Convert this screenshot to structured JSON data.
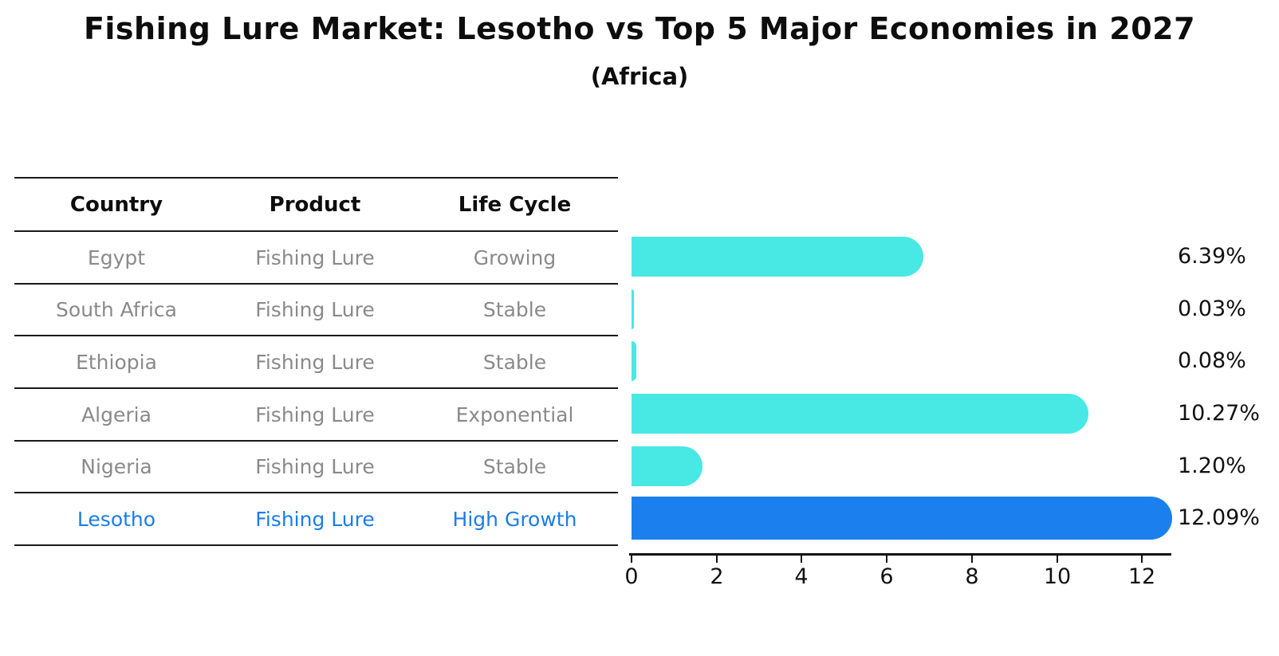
{
  "title": "Fishing Lure Market: Lesotho vs Top 5 Major Economies in 2027",
  "subtitle": "(Africa)",
  "table": {
    "headers": [
      "Country",
      "Product",
      "Life Cycle"
    ],
    "rows": [
      {
        "country": "Egypt",
        "product": "Fishing Lure",
        "life_cycle": "Growing",
        "highlighted": false
      },
      {
        "country": "South Africa",
        "product": "Fishing Lure",
        "life_cycle": "Stable",
        "highlighted": false
      },
      {
        "country": "Ethiopia",
        "product": "Fishing Lure",
        "life_cycle": "Stable",
        "highlighted": false
      },
      {
        "country": "Algeria",
        "product": "Fishing Lure",
        "life_cycle": "Exponential",
        "highlighted": false
      },
      {
        "country": "Nigeria",
        "product": "Fishing Lure",
        "life_cycle": "Stable",
        "highlighted": false
      },
      {
        "country": "Lesotho",
        "product": "Fishing Lure",
        "life_cycle": "High Growth",
        "highlighted": true
      }
    ]
  },
  "chart_data": {
    "type": "bar",
    "orientation": "horizontal",
    "title": "Fishing Lure Market: Lesotho vs Top 5 Major Economies in 2027",
    "subtitle": "(Africa)",
    "categories": [
      "Egypt",
      "South Africa",
      "Ethiopia",
      "Algeria",
      "Nigeria",
      "Lesotho"
    ],
    "values": [
      6.39,
      0.03,
      0.08,
      10.27,
      1.2,
      12.09
    ],
    "value_labels": [
      "6.39%",
      "0.03%",
      "0.08%",
      "10.27%",
      "1.20%",
      "12.09%"
    ],
    "xlabel": "",
    "ylabel": "",
    "xlim": [
      0,
      12.7
    ],
    "x_ticks": [
      0,
      2,
      4,
      6,
      8,
      10,
      12
    ],
    "grid": false,
    "legend": "none",
    "bar_color": "#48e8e4",
    "highlight_color": "#1b80ee",
    "highlight_category": "Lesotho",
    "highlight_border_style": "dotted"
  },
  "colors": {
    "title_text": "#0d0d0d",
    "muted_text": "#8a8a8a",
    "value_text": "#111111",
    "highlight_text": "#1b7dea",
    "table_line": "#1a1a1a"
  }
}
